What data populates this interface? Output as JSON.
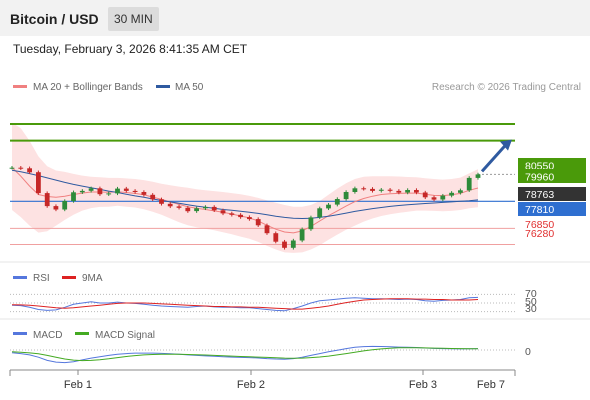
{
  "header": {
    "title": "Bitcoin / USD",
    "timeframe": "30 MIN"
  },
  "datetime": "Tuesday, February 3, 2026 8:41:35 AM CET",
  "main_legend": {
    "items": [
      {
        "label": "MA 20 + Bollinger Bands",
        "color": "#f08080"
      },
      {
        "label": "MA 50",
        "color": "#2f5aa0"
      }
    ],
    "credit": "Research © 2026 Trading Central"
  },
  "price_levels": {
    "resistance_2": {
      "label": "80550",
      "value": 80550,
      "color": "#4a9a0a"
    },
    "resistance_1": {
      "label": "79960",
      "value": 79960,
      "color": "#4a9a0a"
    },
    "last": {
      "label": "78763",
      "value": 78763,
      "color": "#333333"
    },
    "pivot": {
      "label": "77810",
      "value": 77810,
      "color": "#2f6fd0"
    },
    "support_1": {
      "label": "76850",
      "value": 76850,
      "color": "#e03030"
    },
    "support_2": {
      "label": "76280",
      "value": 76280,
      "color": "#e03030"
    }
  },
  "rsi_panel": {
    "legend": [
      {
        "label": "RSI",
        "color": "#5577dd"
      },
      {
        "label": "9MA",
        "color": "#dd2222"
      }
    ],
    "levels": [
      "70",
      "50",
      "30"
    ]
  },
  "macd_panel": {
    "legend": [
      {
        "label": "MACD",
        "color": "#5577dd"
      },
      {
        "label": "MACD Signal",
        "color": "#44aa22"
      }
    ],
    "zero_label": "0"
  },
  "x_axis": {
    "ticks": [
      "Feb 1",
      "Feb 2",
      "Feb 3",
      "Feb 7"
    ]
  },
  "chart_data": {
    "type": "line",
    "price_axis": {
      "ylim": [
        75800,
        81400
      ]
    },
    "price": [
      79000,
      78980,
      78840,
      78100,
      77640,
      77520,
      77820,
      78130,
      78180,
      78270,
      78060,
      78090,
      78260,
      78180,
      78140,
      78040,
      77880,
      77720,
      77630,
      77580,
      77460,
      77560,
      77610,
      77490,
      77380,
      77330,
      77250,
      77180,
      76960,
      76680,
      76380,
      76160,
      76420,
      76820,
      77240,
      77560,
      77690,
      77890,
      78140,
      78270,
      78250,
      78180,
      78220,
      78180,
      78120,
      78210,
      78120,
      77950,
      77870,
      78010,
      78110,
      78200,
      78640,
      78763
    ],
    "ma20": [
      79010,
      78700,
      78350,
      78050,
      77980,
      77950,
      77990,
      78050,
      78100,
      78140,
      78140,
      78130,
      78150,
      78120,
      78090,
      78040,
      77960,
      77880,
      77790,
      77700,
      77620,
      77560,
      77520,
      77470,
      77420,
      77360,
      77290,
      77220,
      77110,
      76960,
      76820,
      76720,
      76690,
      76760,
      76920,
      77110,
      77300,
      77470,
      77640,
      77800,
      77910,
      77990,
      78050,
      78080,
      78090,
      78100,
      78100,
      78060,
      78020,
      78010,
      78040,
      78090,
      78200,
      78280
    ],
    "ma50": [
      78910,
      78860,
      78790,
      78720,
      78640,
      78560,
      78480,
      78410,
      78350,
      78290,
      78230,
      78170,
      78120,
      78060,
      78000,
      77950,
      77890,
      77840,
      77790,
      77740,
      77690,
      77640,
      77600,
      77560,
      77520,
      77490,
      77460,
      77420,
      77380,
      77330,
      77280,
      77240,
      77210,
      77200,
      77210,
      77240,
      77280,
      77330,
      77390,
      77450,
      77500,
      77550,
      77590,
      77630,
      77660,
      77690,
      77710,
      77730,
      77750,
      77770,
      77790,
      77810,
      77830,
      77860
    ],
    "bb_upper": [
      80600,
      80400,
      79950,
      79400,
      79050,
      78900,
      78850,
      78780,
      78720,
      78680,
      78660,
      78640,
      78640,
      78620,
      78600,
      78560,
      78500,
      78430,
      78380,
      78330,
      78290,
      78240,
      78200,
      78170,
      78140,
      78100,
      78060,
      78000,
      77930,
      77840,
      77760,
      77680,
      77620,
      77620,
      77680,
      77820,
      78040,
      78260,
      78450,
      78600,
      78680,
      78700,
      78700,
      78700,
      78690,
      78670,
      78660,
      78630,
      78600,
      78580,
      78600,
      78650,
      78800,
      78950
    ],
    "bb_lower": [
      77500,
      77250,
      76950,
      76700,
      76750,
      76950,
      77150,
      77330,
      77480,
      77570,
      77610,
      77620,
      77650,
      77620,
      77590,
      77530,
      77440,
      77330,
      77200,
      77070,
      76960,
      76890,
      76840,
      76780,
      76710,
      76640,
      76560,
      76480,
      76370,
      76230,
      76100,
      76000,
      75980,
      76000,
      76100,
      76250,
      76450,
      76630,
      76800,
      76950,
      77090,
      77200,
      77290,
      77350,
      77400,
      77440,
      77480,
      77480,
      77470,
      77460,
      77470,
      77500,
      77560,
      77600
    ],
    "projection": {
      "from": 78763,
      "to": 79960
    },
    "rsi": [
      45,
      44,
      40,
      35,
      33,
      34,
      40,
      47,
      50,
      53,
      50,
      50,
      52,
      50,
      49,
      47,
      45,
      43,
      42,
      41,
      40,
      42,
      43,
      41,
      40,
      40,
      39,
      39,
      37,
      35,
      33,
      32,
      37,
      43,
      50,
      55,
      57,
      59,
      61,
      62,
      61,
      60,
      60,
      59,
      58,
      59,
      58,
      55,
      54,
      56,
      57,
      58,
      62,
      63
    ],
    "rsi_ma": [
      46,
      45.5,
      45,
      43,
      41,
      39,
      38,
      39,
      41,
      43,
      45,
      47,
      49,
      50,
      50,
      50,
      49,
      48,
      47,
      46,
      45,
      44,
      43,
      42,
      42,
      41,
      41,
      40,
      40,
      39,
      38,
      37,
      36,
      36,
      38,
      40,
      43,
      47,
      51,
      54,
      57,
      58,
      59,
      60,
      60,
      60,
      59,
      59,
      58,
      58,
      57,
      57,
      57,
      58
    ],
    "rsi_axis": {
      "ylim": [
        20,
        80
      ]
    },
    "macd": [
      -60,
      -80,
      -110,
      -160,
      -230,
      -270,
      -280,
      -260,
      -220,
      -180,
      -150,
      -120,
      -95,
      -80,
      -70,
      -68,
      -70,
      -75,
      -85,
      -95,
      -110,
      -120,
      -130,
      -140,
      -150,
      -158,
      -165,
      -170,
      -178,
      -190,
      -200,
      -205,
      -190,
      -160,
      -120,
      -80,
      -40,
      -5,
      30,
      60,
      75,
      80,
      78,
      72,
      65,
      60,
      55,
      45,
      35,
      30,
      28,
      25,
      28,
      30
    ],
    "macd_signal": [
      -40,
      -50,
      -65,
      -85,
      -120,
      -160,
      -200,
      -225,
      -235,
      -230,
      -215,
      -195,
      -170,
      -145,
      -125,
      -110,
      -100,
      -95,
      -93,
      -95,
      -100,
      -106,
      -112,
      -120,
      -128,
      -136,
      -144,
      -150,
      -157,
      -165,
      -173,
      -180,
      -183,
      -180,
      -170,
      -155,
      -135,
      -110,
      -80,
      -50,
      -20,
      5,
      25,
      40,
      48,
      50,
      50,
      47,
      43,
      38,
      34,
      30,
      28,
      28
    ],
    "macd_axis": {
      "ylim": [
        -400,
        200
      ]
    }
  }
}
